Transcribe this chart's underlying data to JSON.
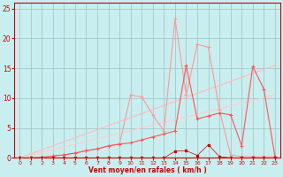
{
  "xlabel": "Vent moyen/en rafales ( km/h )",
  "bg_color": "#c8eef0",
  "grid_color": "#9fbfbf",
  "xlim": [
    -0.5,
    23.5
  ],
  "ylim": [
    0,
    26
  ],
  "xticks": [
    0,
    1,
    2,
    3,
    4,
    5,
    6,
    7,
    8,
    9,
    10,
    11,
    12,
    13,
    14,
    15,
    16,
    17,
    18,
    19,
    20,
    21,
    22,
    23
  ],
  "yticks": [
    0,
    5,
    10,
    15,
    20,
    25
  ],
  "line_color_dark": "#ff5555",
  "line_color_med": "#ff9999",
  "line_color_light1": "#ffbbbb",
  "line_color_light2": "#ffcccc",
  "dot_color": "#cc0000",
  "series1_x": [
    0,
    1,
    2,
    3,
    4,
    5,
    6,
    7,
    8,
    9,
    10,
    11,
    12,
    13,
    14,
    15,
    16,
    17,
    18,
    19,
    20,
    21,
    22,
    23
  ],
  "series1_y": [
    0,
    0,
    0.1,
    0.3,
    0.5,
    0.8,
    1.2,
    1.5,
    2.0,
    2.3,
    2.5,
    3.0,
    3.5,
    4.0,
    4.5,
    15.5,
    6.5,
    7.0,
    7.5,
    7.2,
    2.0,
    15.3,
    11.5,
    0.2
  ],
  "series2_x": [
    0,
    1,
    2,
    3,
    4,
    5,
    6,
    7,
    8,
    9,
    10,
    11,
    12,
    13,
    14,
    15,
    16,
    17,
    18,
    19,
    20,
    21,
    22,
    23
  ],
  "series2_y": [
    0,
    0,
    0.1,
    0.3,
    0.5,
    0.8,
    1.2,
    1.5,
    2.0,
    2.3,
    10.5,
    10.2,
    7.2,
    4.5,
    23.3,
    10.5,
    19.0,
    18.5,
    8.0,
    0.5,
    0.2,
    0.2,
    0.2,
    0.2
  ],
  "ref_line1_x": [
    0,
    23
  ],
  "ref_line1_y": [
    0,
    15.5
  ],
  "ref_line2_x": [
    0,
    23
  ],
  "ref_line2_y": [
    0,
    10.5
  ],
  "bottom_dots_x": [
    0,
    1,
    2,
    3,
    4,
    5,
    6,
    7,
    8,
    9,
    10,
    11,
    12,
    13,
    14,
    15,
    16,
    17,
    18,
    19,
    20,
    21,
    22,
    23
  ],
  "bottom_dots_y": [
    0,
    0,
    0,
    0,
    0,
    0,
    0,
    0,
    0,
    0,
    0,
    0,
    0,
    0,
    1.1,
    1.2,
    0.4,
    2.2,
    0.2,
    0,
    0,
    0,
    0,
    0
  ]
}
